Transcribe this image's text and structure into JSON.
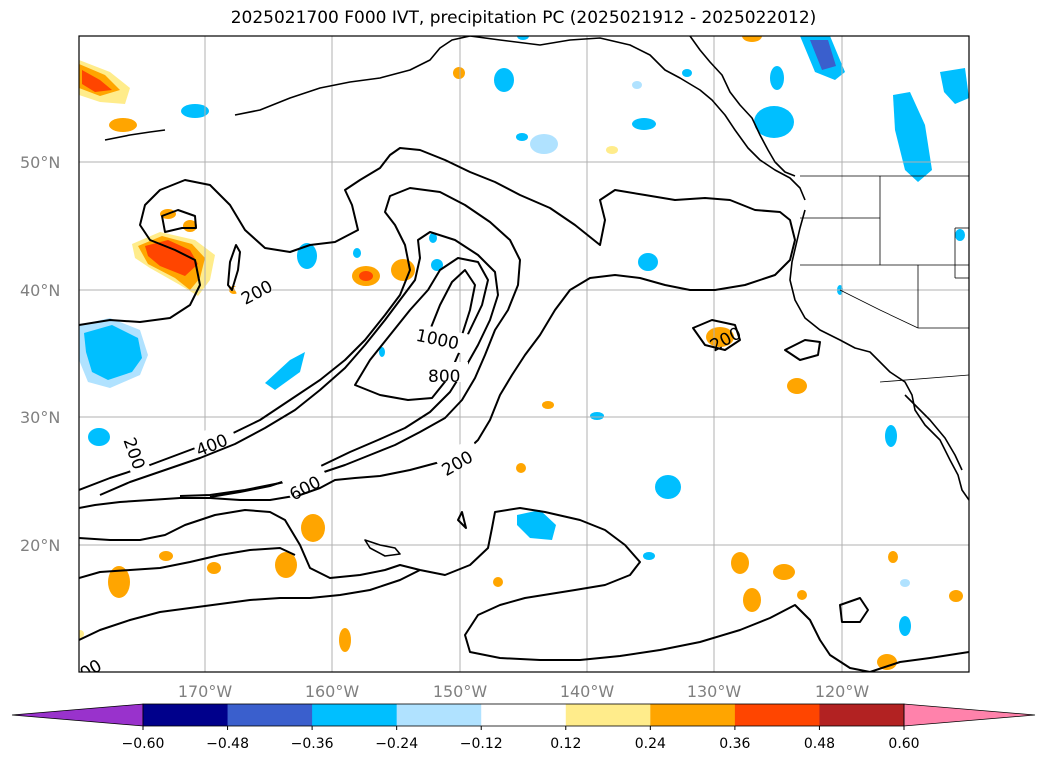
{
  "title": "2025021700 F000 IVT, precipitation PC (2025021912 - 2025022012)",
  "map": {
    "lon_labels": [
      "170°W",
      "160°W",
      "150°W",
      "140°W",
      "130°W",
      "120°W"
    ],
    "lat_labels": [
      "50°N",
      "40°N",
      "30°N",
      "20°N"
    ],
    "ivt_contour_levels": [
      200,
      400,
      600,
      800,
      1000
    ],
    "contour_labels": {
      "c200a": "200",
      "c200b": "200",
      "c200c": "200",
      "c200d": "200",
      "c400": "400",
      "c600": "600",
      "c800": "800",
      "c1000": "1000",
      "c00": "00"
    }
  },
  "colorbar": {
    "tick_labels": [
      "−0.60",
      "−0.48",
      "−0.36",
      "−0.24",
      "−0.12",
      "0.12",
      "0.24",
      "0.36",
      "0.48",
      "0.60"
    ],
    "colors": [
      "#9932CC",
      "#00008B",
      "#3A5FCD",
      "#00BFFF",
      "#B0E2FF",
      "#FFFFFF",
      "#FFEC8B",
      "#FFA500",
      "#FF4500",
      "#B22222",
      "#FF82AB"
    ]
  }
}
